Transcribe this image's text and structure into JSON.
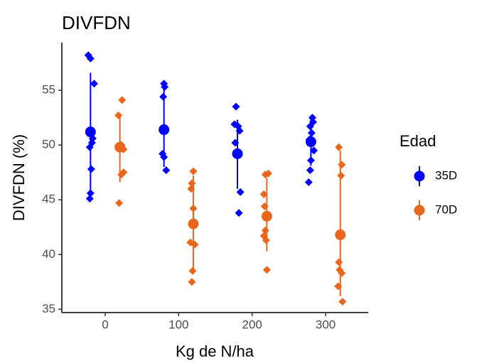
{
  "chart_data": {
    "type": "scatter",
    "title": "DIVFDN",
    "x_label": "Kg de N/ha",
    "y_label": "DIVFDN (%)",
    "legend_title": "Edad",
    "legend_position": "right",
    "xlim": [
      -59,
      358
    ],
    "ylim": [
      34.7,
      59.35
    ],
    "xticks": [
      0,
      100,
      200,
      300
    ],
    "yticks": [
      35,
      40,
      45,
      50,
      55
    ],
    "series": [
      {
        "name": "35D",
        "color": "#0000ff",
        "x": [
          -20,
          80,
          180,
          280
        ],
        "mean": [
          51.2,
          51.4,
          49.2,
          50.3
        ],
        "lower": [
          45.0,
          48.0,
          46.0,
          48.1
        ],
        "upper": [
          56.6,
          55.7,
          52.3,
          52.6
        ],
        "points": [
          {
            "x": [
              -23,
              -20,
              -15,
              -17,
              -18,
              -21,
              -19,
              -20,
              -21
            ],
            "y": [
              58.2,
              57.9,
              55.6,
              50.6,
              50.2,
              49.8,
              47.8,
              45.6,
              45.1
            ]
          },
          {
            "x": [
              80,
              81,
              79,
              82,
              78,
              80,
              83
            ],
            "y": [
              55.6,
              55.3,
              54.4,
              51.3,
              49.2,
              48.9,
              47.7
            ]
          },
          {
            "x": [
              178,
              176,
              181,
              183,
              177,
              180,
              184,
              182
            ],
            "y": [
              53.5,
              51.9,
              51.7,
              51.3,
              50.2,
              49.4,
              45.7,
              43.8
            ]
          },
          {
            "x": [
              282,
              283,
              279,
              281,
              278,
              284,
              280,
              279,
              277
            ],
            "y": [
              52.5,
              52.1,
              51.7,
              51.1,
              50.5,
              49.5,
              48.6,
              47.7,
              46.6
            ]
          }
        ]
      },
      {
        "name": "70D",
        "color": "#e8671c",
        "x": [
          20,
          120,
          220,
          320
        ],
        "mean": [
          49.8,
          42.8,
          43.5,
          41.8
        ],
        "lower": [
          46.6,
          38.5,
          40.3,
          36.2
        ],
        "upper": [
          52.9,
          47.2,
          47.0,
          49.5
        ],
        "points": [
          {
            "x": [
              23,
              18,
              22,
              25,
              25,
              22,
              19
            ],
            "y": [
              54.1,
              52.7,
              50.0,
              49.6,
              47.5,
              47.3,
              44.7
            ]
          },
          {
            "x": [
              120,
              118,
              117,
              120,
              116,
              122,
              119,
              118
            ],
            "y": [
              47.6,
              46.5,
              46.0,
              44.2,
              41.1,
              40.9,
              38.5,
              37.5
            ]
          },
          {
            "x": [
              218,
              222,
              216,
              217,
              218,
              216,
              219,
              220
            ],
            "y": [
              47.3,
              47.4,
              45.5,
              44.4,
              42.2,
              41.7,
              41.3,
              38.6
            ]
          },
          {
            "x": [
              318,
              322,
              321,
              318,
              319,
              322,
              317,
              323
            ],
            "y": [
              49.8,
              48.2,
              47.2,
              39.3,
              38.6,
              38.3,
              37.1,
              35.7
            ]
          }
        ]
      }
    ]
  }
}
